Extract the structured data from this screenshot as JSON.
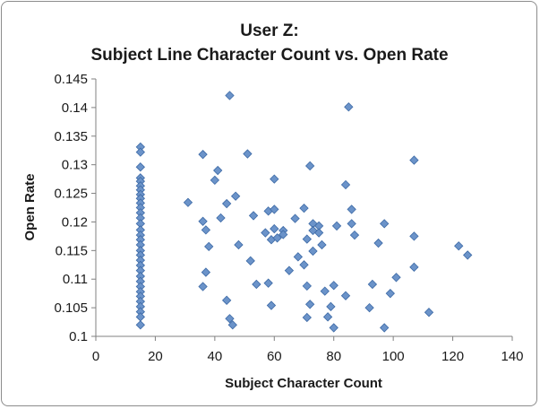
{
  "chart_data": {
    "type": "scatter",
    "title_line1": "User Z:",
    "title_line2": "Subject Line Character Count vs. Open Rate",
    "xlabel": "Subject Character Count",
    "ylabel": "Open Rate",
    "xlim": [
      0,
      140
    ],
    "ylim": [
      0.1,
      0.145
    ],
    "x_ticks": [
      "0",
      "20",
      "40",
      "60",
      "80",
      "100",
      "120",
      "140"
    ],
    "y_ticks": [
      "0.1",
      "0.105",
      "0.11",
      "0.115",
      "0.12",
      "0.125",
      "0.13",
      "0.135",
      "0.14",
      "0.145"
    ],
    "grid": false,
    "legend": "none",
    "marker": "diamond",
    "color": "#6b93c9",
    "series": [
      {
        "points": [
          [
            15,
            0.1331
          ],
          [
            15,
            0.1322
          ],
          [
            15,
            0.1296
          ],
          [
            15,
            0.1277
          ],
          [
            15,
            0.1271
          ],
          [
            15,
            0.1263
          ],
          [
            15,
            0.1256
          ],
          [
            15,
            0.1248
          ],
          [
            15,
            0.1241
          ],
          [
            15,
            0.1233
          ],
          [
            15,
            0.1225
          ],
          [
            15,
            0.1216
          ],
          [
            15,
            0.1207
          ],
          [
            15,
            0.1197
          ],
          [
            15,
            0.1186
          ],
          [
            15,
            0.1177
          ],
          [
            15,
            0.1169
          ],
          [
            15,
            0.116
          ],
          [
            15,
            0.115
          ],
          [
            15,
            0.1142
          ],
          [
            15,
            0.1133
          ],
          [
            15,
            0.1124
          ],
          [
            15,
            0.1115
          ],
          [
            15,
            0.1105
          ],
          [
            15,
            0.1096
          ],
          [
            15,
            0.1087
          ],
          [
            15,
            0.1078
          ],
          [
            15,
            0.107
          ],
          [
            15,
            0.1061
          ],
          [
            15,
            0.1052
          ],
          [
            15,
            0.1043
          ],
          [
            15,
            0.1034
          ],
          [
            15,
            0.102
          ],
          [
            31,
            0.1234
          ],
          [
            36,
            0.1318
          ],
          [
            36,
            0.1201
          ],
          [
            36,
            0.1087
          ],
          [
            37,
            0.1186
          ],
          [
            37,
            0.1112
          ],
          [
            38,
            0.1157
          ],
          [
            40,
            0.1273
          ],
          [
            41,
            0.129
          ],
          [
            42,
            0.1207
          ],
          [
            44,
            0.1232
          ],
          [
            44,
            0.1063
          ],
          [
            45,
            0.1421
          ],
          [
            45,
            0.1031
          ],
          [
            46,
            0.102
          ],
          [
            47,
            0.1245
          ],
          [
            48,
            0.116
          ],
          [
            51,
            0.1319
          ],
          [
            52,
            0.1132
          ],
          [
            53,
            0.1211
          ],
          [
            54,
            0.1091
          ],
          [
            57,
            0.1181
          ],
          [
            58,
            0.1093
          ],
          [
            58,
            0.1219
          ],
          [
            59,
            0.1169
          ],
          [
            59,
            0.1054
          ],
          [
            60,
            0.1222
          ],
          [
            60,
            0.1275
          ],
          [
            60,
            0.1188
          ],
          [
            61,
            0.1172
          ],
          [
            63,
            0.1185
          ],
          [
            63,
            0.1178
          ],
          [
            65,
            0.1115
          ],
          [
            67,
            0.1206
          ],
          [
            68,
            0.1139
          ],
          [
            70,
            0.1224
          ],
          [
            70,
            0.1125
          ],
          [
            71,
            0.117
          ],
          [
            71,
            0.1088
          ],
          [
            71,
            0.1033
          ],
          [
            72,
            0.1298
          ],
          [
            72,
            0.1056
          ],
          [
            73,
            0.1197
          ],
          [
            73,
            0.1185
          ],
          [
            73,
            0.1149
          ],
          [
            75,
            0.1193
          ],
          [
            75,
            0.1181
          ],
          [
            76,
            0.116
          ],
          [
            77,
            0.1079
          ],
          [
            78,
            0.1034
          ],
          [
            79,
            0.1052
          ],
          [
            80,
            0.1089
          ],
          [
            80,
            0.1015
          ],
          [
            81,
            0.1193
          ],
          [
            84,
            0.1265
          ],
          [
            84,
            0.1071
          ],
          [
            85,
            0.1401
          ],
          [
            86,
            0.1222
          ],
          [
            86,
            0.1197
          ],
          [
            87,
            0.1177
          ],
          [
            92,
            0.105
          ],
          [
            93,
            0.1091
          ],
          [
            95,
            0.1163
          ],
          [
            97,
            0.1197
          ],
          [
            97,
            0.1015
          ],
          [
            99,
            0.1075
          ],
          [
            101,
            0.1103
          ],
          [
            107,
            0.1308
          ],
          [
            107,
            0.1175
          ],
          [
            107,
            0.1121
          ],
          [
            112,
            0.1042
          ],
          [
            122,
            0.1158
          ],
          [
            125,
            0.1142
          ]
        ]
      }
    ]
  }
}
